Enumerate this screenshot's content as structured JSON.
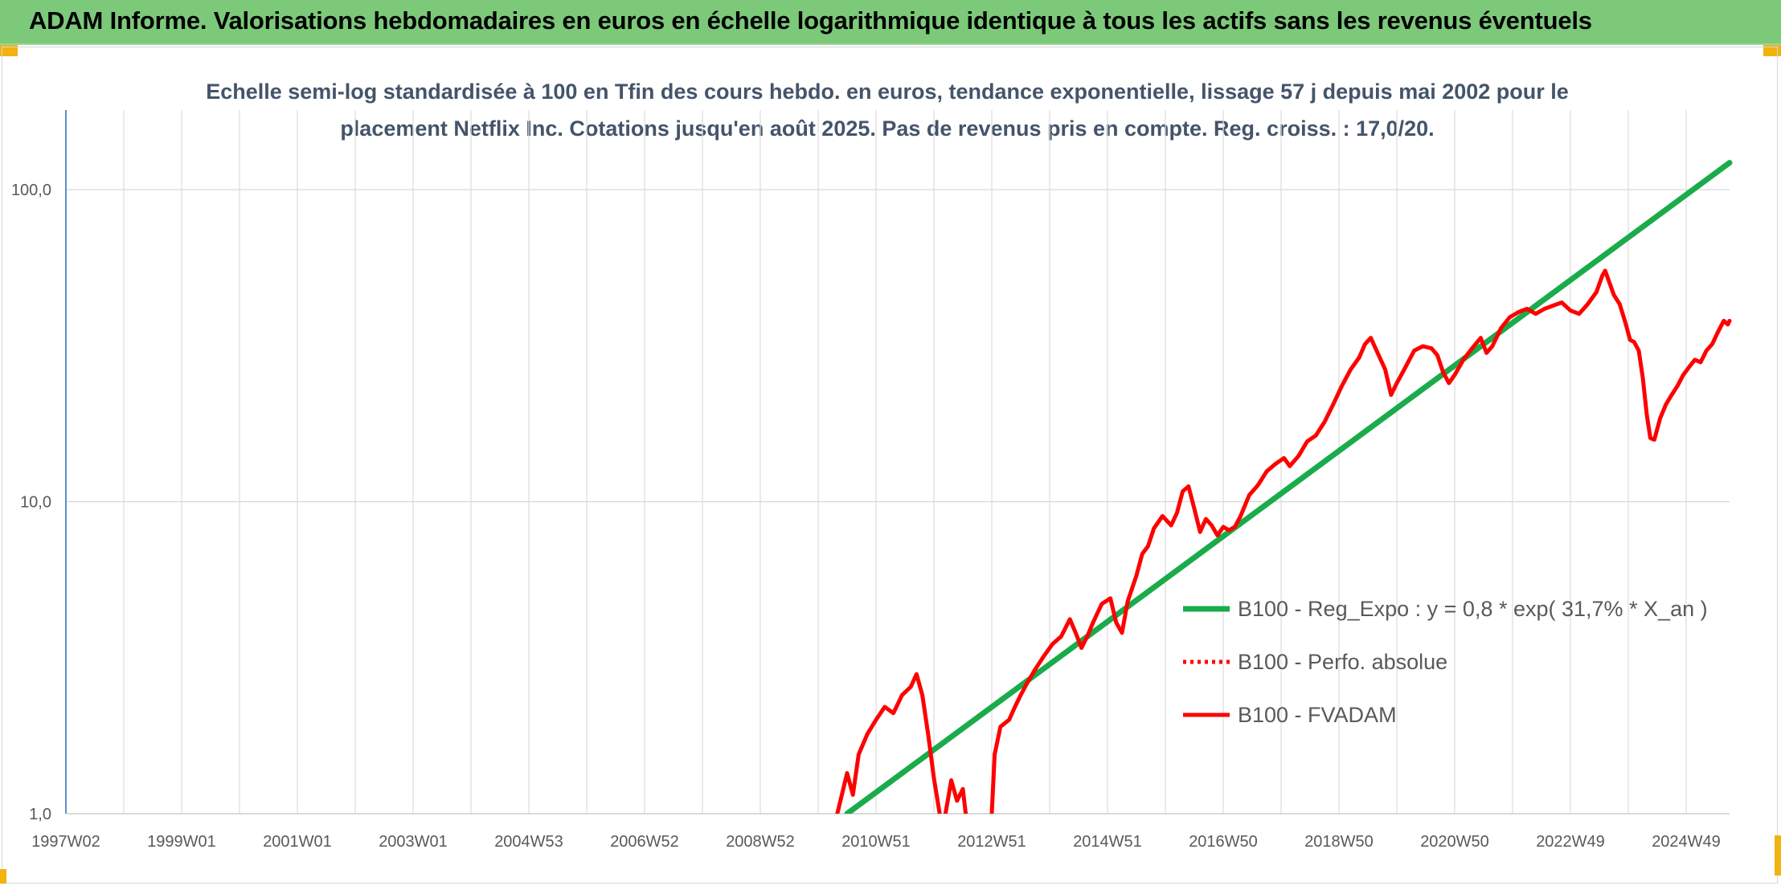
{
  "header": {
    "title": "ADAM Informe. Valorisations hebdomadaires en euros en échelle logarithmique identique à tous les actifs sans les revenus éventuels"
  },
  "colors": {
    "header_bg": "#7cc97a",
    "accent": "#f2b20f",
    "trend": "#1aab4b",
    "fvadam": "#ff0000",
    "perfo": "#ff0000"
  },
  "chart_data": {
    "type": "line",
    "title_lines": [
      "Echelle semi-log standardisée à 100 en Tfin des cours hebdo. en euros, tendance exponentielle, lissage 57 j depuis mai 2002 pour le",
      "placement Netflix Inc. Cotations jusqu'en août 2025. Pas de revenus pris en compte. Reg. croiss. : 17,0/20."
    ],
    "y_scale": "log",
    "ylim": [
      1,
      180
    ],
    "yticks": [
      {
        "value": 1,
        "label": "1,0"
      },
      {
        "value": 10,
        "label": "10,0"
      },
      {
        "value": 100,
        "label": "100,0"
      }
    ],
    "xlim": [
      1997.0,
      2025.75
    ],
    "xticks": [
      {
        "value": 1997.0,
        "label": "1997W02"
      },
      {
        "value": 1999.0,
        "label": "1999W01"
      },
      {
        "value": 2001.0,
        "label": "2001W01"
      },
      {
        "value": 2003.0,
        "label": "2003W01"
      },
      {
        "value": 2005.0,
        "label": "2004W53"
      },
      {
        "value": 2007.0,
        "label": "2006W52"
      },
      {
        "value": 2009.0,
        "label": "2008W52"
      },
      {
        "value": 2011.0,
        "label": "2010W51"
      },
      {
        "value": 2013.0,
        "label": "2012W51"
      },
      {
        "value": 2015.0,
        "label": "2014W51"
      },
      {
        "value": 2017.0,
        "label": "2016W50"
      },
      {
        "value": 2019.0,
        "label": "2018W50"
      },
      {
        "value": 2021.0,
        "label": "2020W50"
      },
      {
        "value": 2023.0,
        "label": "2022W49"
      },
      {
        "value": 2025.0,
        "label": "2024W49"
      }
    ],
    "x_gridlines": [
      1997.0,
      1998.0,
      1999.0,
      2000.0,
      2001.0,
      2002.0,
      2003.0,
      2004.0,
      2005.0,
      2006.0,
      2007.0,
      2008.0,
      2009.0,
      2010.0,
      2011.0,
      2012.0,
      2013.0,
      2014.0,
      2015.0,
      2016.0,
      2017.0,
      2018.0,
      2019.0,
      2020.0,
      2021.0,
      2022.0,
      2023.0,
      2024.0,
      2025.0
    ],
    "legend_position": "right",
    "series": [
      {
        "name": "B100 - Reg_Expo : y = 0,8 * exp( 31,7% *  X_an )",
        "style": "solid",
        "color": "#1aab4b",
        "points": [
          [
            2010.5,
            1.0
          ],
          [
            2025.75,
            122.0
          ]
        ]
      },
      {
        "name": "B100 - Perfo. absolue",
        "style": "dotted",
        "color": "#ff0000",
        "points": []
      },
      {
        "name": "B100 - FVADAM",
        "style": "solid",
        "color": "#ff0000",
        "segments": [
          [
            [
              2010.33,
              1.0
            ],
            [
              2010.5,
              1.35
            ],
            [
              2010.6,
              1.15
            ],
            [
              2010.7,
              1.55
            ],
            [
              2010.85,
              1.8
            ],
            [
              2011.0,
              2.0
            ],
            [
              2011.15,
              2.2
            ],
            [
              2011.3,
              2.1
            ],
            [
              2011.45,
              2.4
            ],
            [
              2011.6,
              2.55
            ],
            [
              2011.7,
              2.8
            ],
            [
              2011.8,
              2.4
            ],
            [
              2011.9,
              1.8
            ],
            [
              2012.0,
              1.3
            ],
            [
              2012.1,
              1.0
            ]
          ],
          [
            [
              2012.2,
              1.0
            ],
            [
              2012.3,
              1.28
            ],
            [
              2012.4,
              1.1
            ],
            [
              2012.5,
              1.2
            ],
            [
              2012.55,
              1.0
            ]
          ],
          [
            [
              2013.0,
              1.0
            ],
            [
              2013.05,
              1.55
            ],
            [
              2013.15,
              1.9
            ],
            [
              2013.3,
              2.0
            ],
            [
              2013.4,
              2.2
            ],
            [
              2013.5,
              2.4
            ],
            [
              2013.6,
              2.6
            ],
            [
              2013.75,
              2.9
            ],
            [
              2013.9,
              3.2
            ],
            [
              2014.05,
              3.5
            ],
            [
              2014.2,
              3.7
            ],
            [
              2014.35,
              4.2
            ],
            [
              2014.45,
              3.8
            ],
            [
              2014.55,
              3.4
            ],
            [
              2014.65,
              3.7
            ],
            [
              2014.75,
              4.1
            ],
            [
              2014.9,
              4.7
            ],
            [
              2015.05,
              4.9
            ],
            [
              2015.15,
              4.1
            ],
            [
              2015.25,
              3.8
            ],
            [
              2015.35,
              4.8
            ],
            [
              2015.5,
              5.8
            ],
            [
              2015.6,
              6.8
            ],
            [
              2015.7,
              7.2
            ],
            [
              2015.8,
              8.2
            ],
            [
              2015.95,
              9.0
            ],
            [
              2016.1,
              8.4
            ],
            [
              2016.2,
              9.2
            ],
            [
              2016.3,
              10.8
            ],
            [
              2016.4,
              11.2
            ],
            [
              2016.5,
              9.5
            ],
            [
              2016.6,
              8.0
            ],
            [
              2016.7,
              8.8
            ],
            [
              2016.8,
              8.4
            ],
            [
              2016.9,
              7.8
            ],
            [
              2017.0,
              8.3
            ],
            [
              2017.1,
              8.1
            ],
            [
              2017.2,
              8.3
            ],
            [
              2017.3,
              9.0
            ],
            [
              2017.45,
              10.5
            ],
            [
              2017.6,
              11.3
            ],
            [
              2017.75,
              12.5
            ],
            [
              2017.9,
              13.2
            ],
            [
              2018.05,
              13.8
            ],
            [
              2018.15,
              13.0
            ],
            [
              2018.3,
              14.0
            ],
            [
              2018.45,
              15.6
            ],
            [
              2018.6,
              16.3
            ],
            [
              2018.75,
              18.0
            ],
            [
              2018.9,
              20.5
            ],
            [
              2019.05,
              23.5
            ],
            [
              2019.2,
              26.5
            ],
            [
              2019.35,
              29.0
            ],
            [
              2019.45,
              32.0
            ],
            [
              2019.55,
              33.5
            ],
            [
              2019.65,
              30.5
            ],
            [
              2019.8,
              26.5
            ],
            [
              2019.9,
              22.0
            ],
            [
              2020.0,
              24.0
            ],
            [
              2020.15,
              27.0
            ],
            [
              2020.3,
              30.5
            ],
            [
              2020.45,
              31.5
            ],
            [
              2020.6,
              31.0
            ],
            [
              2020.7,
              29.5
            ],
            [
              2020.8,
              26.0
            ],
            [
              2020.9,
              24.0
            ],
            [
              2021.0,
              25.5
            ],
            [
              2021.15,
              28.5
            ],
            [
              2021.3,
              31.0
            ],
            [
              2021.45,
              33.5
            ],
            [
              2021.55,
              30.0
            ],
            [
              2021.65,
              31.5
            ],
            [
              2021.8,
              36.0
            ],
            [
              2021.95,
              39.0
            ],
            [
              2022.1,
              40.5
            ],
            [
              2022.25,
              41.5
            ],
            [
              2022.4,
              40.0
            ],
            [
              2022.55,
              41.5
            ],
            [
              2022.7,
              42.5
            ],
            [
              2022.85,
              43.5
            ],
            [
              2023.0,
              41.0
            ],
            [
              2023.15,
              40.0
            ],
            [
              2023.3,
              43.0
            ],
            [
              2023.45,
              47.0
            ],
            [
              2023.55,
              53.0
            ],
            [
              2023.6,
              55.0
            ],
            [
              2023.68,
              50.0
            ],
            [
              2023.75,
              46.0
            ],
            [
              2023.85,
              43.0
            ],
            [
              2023.95,
              37.5
            ],
            [
              2024.03,
              33.0
            ],
            [
              2024.1,
              32.5
            ],
            [
              2024.18,
              30.5
            ],
            [
              2024.25,
              25.0
            ],
            [
              2024.32,
              19.0
            ],
            [
              2024.38,
              16.0
            ],
            [
              2024.45,
              15.8
            ],
            [
              2024.55,
              18.5
            ],
            [
              2024.65,
              20.5
            ],
            [
              2024.75,
              22.0
            ],
            [
              2024.85,
              23.5
            ],
            [
              2024.95,
              25.5
            ],
            [
              2025.05,
              27.0
            ],
            [
              2025.15,
              28.5
            ],
            [
              2025.25,
              28.0
            ],
            [
              2025.35,
              30.5
            ],
            [
              2025.45,
              32.0
            ],
            [
              2025.55,
              35.0
            ],
            [
              2025.65,
              38.0
            ],
            [
              2025.72,
              37.0
            ],
            [
              2025.75,
              38.0
            ]
          ]
        ]
      }
    ]
  }
}
